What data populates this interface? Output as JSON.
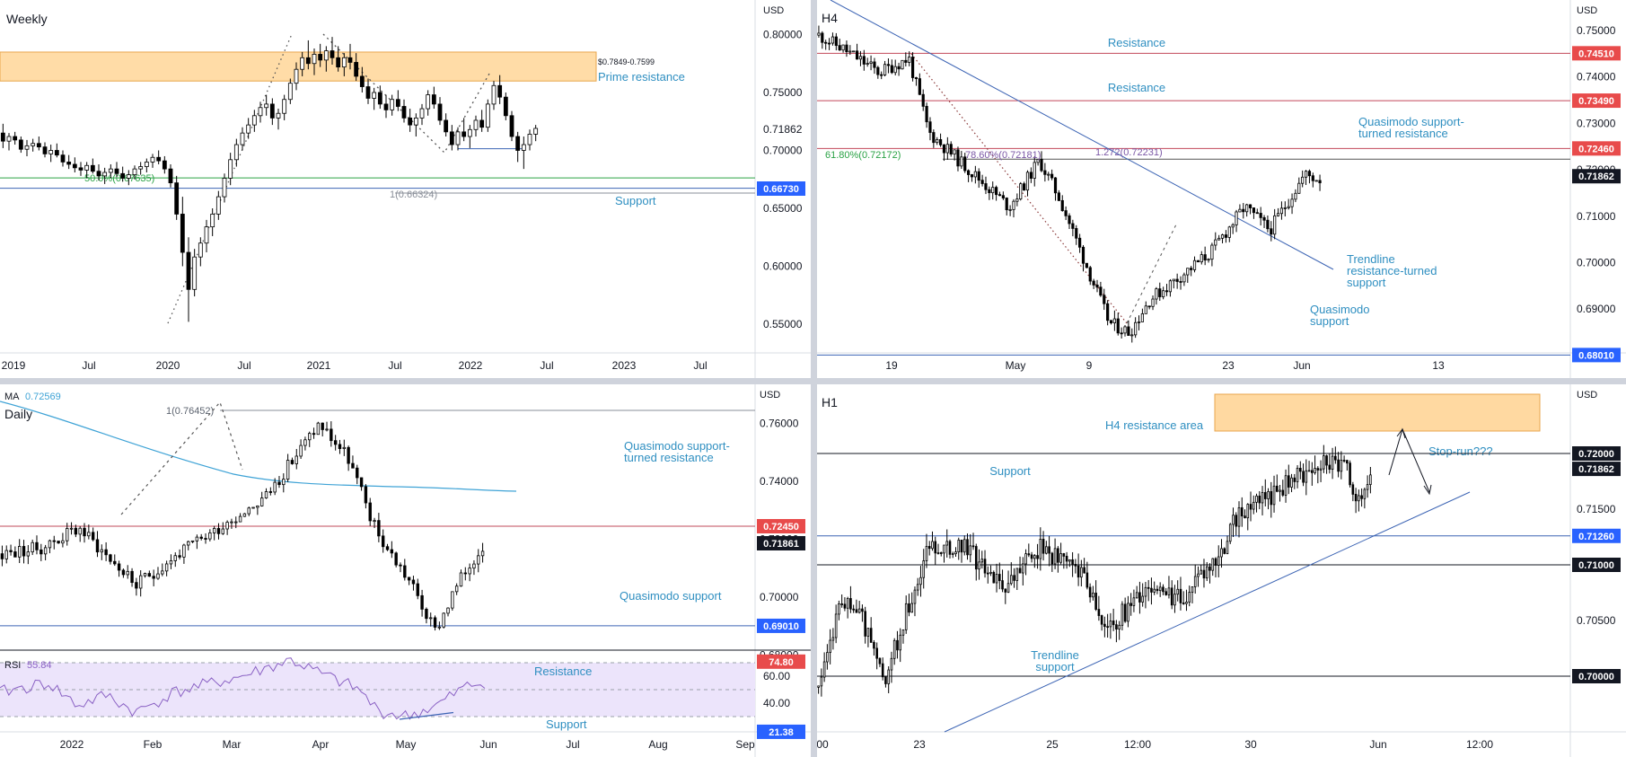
{
  "colors": {
    "up": "#000000",
    "down": "#000000",
    "resistance_line": "#c2485a",
    "support_line": "#3c64b4",
    "zone_fill": "#ffd08a",
    "annotation_blue": "#2f8fc1",
    "fib_green": "#2aa245",
    "fib_purple": "#7b57a6",
    "price_tag_dark": "#131722",
    "price_tag_red": "#e84b4b",
    "price_tag_blue": "#2962ff",
    "ma_color": "#3fa3d6",
    "rsi_color": "#8a61c4",
    "rsi_band": "#ece4fb"
  },
  "panels": {
    "weekly": {
      "timeframe": "Weekly",
      "currency": "USD",
      "zone_label": "$0.7849-0.7599",
      "prime_resistance": "Prime resistance",
      "fib_50": "50.0%(0.67635)",
      "fib_1": "1(0.66324)",
      "support": "Support",
      "price_tag": "0.71862",
      "support_tag": "0.66730"
    },
    "h4": {
      "timeframe": "H4",
      "currency": "USD",
      "resistance_top": "Resistance",
      "resistance_mid": "Resistance",
      "quasimodo_resist": "Quasimodo support-\nturned resistance",
      "fib_618": "61.80%(0.72172)",
      "fib_786": "78.60%(0.72181)",
      "fib_1272": "1.272(0.72231)",
      "trendline": "Trendline\nresistance-turned\nsupport",
      "quasimodo_support": "Quasimodo\nsupport",
      "tags": [
        "0.74510",
        "0.73490",
        "0.72460",
        "0.71862",
        "0.68010"
      ]
    },
    "daily": {
      "ma_label": "MA",
      "ma_value": "0.72569",
      "timeframe": "Daily",
      "currency": "USD",
      "fib_1": "1(0.76452)",
      "quasimodo_resist": "Quasimodo support-\nturned resistance",
      "quasimodo_support": "Quasimodo support",
      "tags": [
        "0.72450",
        "0.71861",
        "0.69010"
      ],
      "rsi_label": "RSI",
      "rsi_value": "55.84",
      "rsi_resistance": "Resistance",
      "rsi_support": "Support",
      "rsi_tags": [
        "74.80",
        "21.38"
      ]
    },
    "h1": {
      "timeframe": "H1",
      "currency": "USD",
      "h4_area": "H4 resistance area",
      "stop_run": "Stop-run???",
      "support": "Support",
      "trendline": "Trendline\nsupport",
      "tags": [
        "0.72000",
        "0.71862",
        "0.71260",
        "0.71000",
        "0.70000"
      ]
    }
  },
  "chart_data": [
    {
      "type": "candlestick",
      "title": "Weekly",
      "y_axis": [
        "0.80000",
        "0.75000",
        "0.70000",
        "0.65000",
        "0.60000",
        "0.55000"
      ],
      "x_axis": [
        "2019",
        "Jul",
        "2020",
        "Jul",
        "2021",
        "Jul",
        "2022",
        "Jul",
        "2023",
        "Jul"
      ],
      "ylim": [
        0.53,
        0.82
      ],
      "ohlc": [
        [
          0.715,
          0.723,
          0.702,
          0.708
        ],
        [
          0.708,
          0.715,
          0.7,
          0.712
        ],
        [
          0.712,
          0.716,
          0.705,
          0.709
        ],
        [
          0.709,
          0.712,
          0.698,
          0.701
        ],
        [
          0.701,
          0.709,
          0.695,
          0.704
        ],
        [
          0.704,
          0.71,
          0.699,
          0.706
        ],
        [
          0.706,
          0.712,
          0.7,
          0.703
        ],
        [
          0.703,
          0.707,
          0.694,
          0.697
        ],
        [
          0.697,
          0.705,
          0.69,
          0.7
        ],
        [
          0.7,
          0.706,
          0.694,
          0.696
        ],
        [
          0.696,
          0.7,
          0.686,
          0.69
        ],
        [
          0.69,
          0.696,
          0.684,
          0.688
        ],
        [
          0.688,
          0.694,
          0.681,
          0.685
        ],
        [
          0.685,
          0.69,
          0.678,
          0.683
        ],
        [
          0.683,
          0.69,
          0.676,
          0.687
        ],
        [
          0.687,
          0.693,
          0.68,
          0.682
        ],
        [
          0.682,
          0.688,
          0.674,
          0.678
        ],
        [
          0.678,
          0.685,
          0.671,
          0.681
        ],
        [
          0.681,
          0.688,
          0.676,
          0.684
        ],
        [
          0.684,
          0.69,
          0.677,
          0.68
        ],
        [
          0.68,
          0.686,
          0.673,
          0.676
        ],
        [
          0.676,
          0.683,
          0.67,
          0.679
        ],
        [
          0.679,
          0.687,
          0.675,
          0.684
        ],
        [
          0.684,
          0.69,
          0.679,
          0.686
        ],
        [
          0.686,
          0.693,
          0.681,
          0.69
        ],
        [
          0.69,
          0.697,
          0.685,
          0.694
        ],
        [
          0.694,
          0.7,
          0.688,
          0.691
        ],
        [
          0.691,
          0.695,
          0.68,
          0.684
        ],
        [
          0.684,
          0.688,
          0.668,
          0.672
        ],
        [
          0.672,
          0.678,
          0.64,
          0.645
        ],
        [
          0.645,
          0.66,
          0.6,
          0.612
        ],
        [
          0.612,
          0.625,
          0.552,
          0.58
        ],
        [
          0.58,
          0.615,
          0.574,
          0.608
        ],
        [
          0.608,
          0.625,
          0.6,
          0.62
        ],
        [
          0.62,
          0.64,
          0.612,
          0.634
        ],
        [
          0.634,
          0.65,
          0.626,
          0.645
        ],
        [
          0.645,
          0.665,
          0.64,
          0.66
        ],
        [
          0.66,
          0.68,
          0.655,
          0.676
        ],
        [
          0.676,
          0.698,
          0.67,
          0.692
        ],
        [
          0.692,
          0.71,
          0.686,
          0.705
        ],
        [
          0.705,
          0.72,
          0.7,
          0.715
        ],
        [
          0.715,
          0.728,
          0.71,
          0.722
        ],
        [
          0.722,
          0.735,
          0.716,
          0.73
        ],
        [
          0.73,
          0.742,
          0.724,
          0.737
        ],
        [
          0.737,
          0.748,
          0.73,
          0.74
        ],
        [
          0.74,
          0.745,
          0.722,
          0.728
        ],
        [
          0.728,
          0.736,
          0.718,
          0.732
        ],
        [
          0.732,
          0.748,
          0.726,
          0.744
        ],
        [
          0.744,
          0.762,
          0.74,
          0.758
        ],
        [
          0.758,
          0.776,
          0.752,
          0.77
        ],
        [
          0.77,
          0.785,
          0.764,
          0.78
        ],
        [
          0.78,
          0.795,
          0.77,
          0.775
        ],
        [
          0.775,
          0.788,
          0.765,
          0.783
        ],
        [
          0.783,
          0.792,
          0.772,
          0.778
        ],
        [
          0.778,
          0.79,
          0.768,
          0.786
        ],
        [
          0.786,
          0.798,
          0.774,
          0.78
        ],
        [
          0.78,
          0.79,
          0.768,
          0.772
        ],
        [
          0.772,
          0.784,
          0.764,
          0.78
        ],
        [
          0.78,
          0.792,
          0.77,
          0.776
        ],
        [
          0.776,
          0.784,
          0.76,
          0.764
        ],
        [
          0.764,
          0.772,
          0.75,
          0.755
        ],
        [
          0.755,
          0.762,
          0.74,
          0.745
        ],
        [
          0.745,
          0.754,
          0.735,
          0.75
        ],
        [
          0.75,
          0.756,
          0.736,
          0.74
        ],
        [
          0.74,
          0.748,
          0.728,
          0.735
        ],
        [
          0.735,
          0.748,
          0.73,
          0.744
        ],
        [
          0.744,
          0.752,
          0.734,
          0.738
        ],
        [
          0.738,
          0.744,
          0.724,
          0.728
        ],
        [
          0.728,
          0.736,
          0.716,
          0.722
        ],
        [
          0.722,
          0.732,
          0.712,
          0.728
        ],
        [
          0.728,
          0.74,
          0.722,
          0.736
        ],
        [
          0.736,
          0.752,
          0.73,
          0.748
        ],
        [
          0.748,
          0.755,
          0.736,
          0.74
        ],
        [
          0.74,
          0.746,
          0.722,
          0.726
        ],
        [
          0.726,
          0.732,
          0.712,
          0.716
        ],
        [
          0.716,
          0.722,
          0.7,
          0.705
        ],
        [
          0.705,
          0.72,
          0.7,
          0.716
        ],
        [
          0.716,
          0.728,
          0.708,
          0.712
        ],
        [
          0.712,
          0.722,
          0.702,
          0.718
        ],
        [
          0.718,
          0.73,
          0.712,
          0.726
        ],
        [
          0.726,
          0.735,
          0.716,
          0.72
        ],
        [
          0.72,
          0.744,
          0.716,
          0.74
        ],
        [
          0.74,
          0.76,
          0.735,
          0.756
        ],
        [
          0.756,
          0.765,
          0.74,
          0.746
        ],
        [
          0.746,
          0.75,
          0.726,
          0.73
        ],
        [
          0.73,
          0.734,
          0.708,
          0.712
        ],
        [
          0.712,
          0.716,
          0.69,
          0.7
        ],
        [
          0.7,
          0.712,
          0.684,
          0.705
        ],
        [
          0.705,
          0.718,
          0.7,
          0.714
        ],
        [
          0.714,
          0.722,
          0.708,
          0.719
        ]
      ]
    },
    {
      "type": "candlestick",
      "title": "H4",
      "y_axis": [
        "0.75000",
        "0.74000",
        "0.73000",
        "0.72000",
        "0.71000",
        "0.70000",
        "0.69000"
      ],
      "x_axis": [
        "19",
        "May",
        "9",
        "23",
        "Jun",
        "13"
      ],
      "ylim": [
        0.6775,
        0.7535
      ],
      "levels": {
        "resistance_1": 0.7451,
        "resistance_2": 0.7349,
        "quasimodo_resistance": 0.7246,
        "current": 0.71862,
        "quasimodo_support": 0.6801
      }
    },
    {
      "type": "candlestick",
      "title": "Daily",
      "y_axis": [
        "0.76000",
        "0.74000",
        "0.72000",
        "0.70000",
        "0.68000"
      ],
      "x_axis": [
        "2022",
        "Feb",
        "Mar",
        "Apr",
        "May",
        "Jun",
        "Jul",
        "Aug",
        "Sep"
      ],
      "ylim": [
        0.6715,
        0.7685
      ],
      "levels": {
        "quasimodo_resistance": 0.7245,
        "current": 0.71861,
        "quasimodo_support": 0.6901
      },
      "ma_value": 0.72569,
      "rsi": {
        "value": 55.84,
        "y_axis": [
          "60.00",
          "40.00"
        ],
        "resistance": 74.8,
        "support": 21.38
      }
    },
    {
      "type": "candlestick",
      "title": "H1",
      "y_axis": [
        "0.72000",
        "0.71500",
        "0.71000",
        "0.70500",
        "0.70000"
      ],
      "x_axis": [
        "00",
        "23",
        "25",
        "12:00",
        "30",
        "Jun",
        "12:00"
      ],
      "ylim": [
        0.6985,
        0.7234
      ],
      "levels": {
        "resistance": 0.72,
        "current": 0.71862,
        "support": 0.7126,
        "level": 0.71,
        "lower": 0.7
      }
    }
  ]
}
